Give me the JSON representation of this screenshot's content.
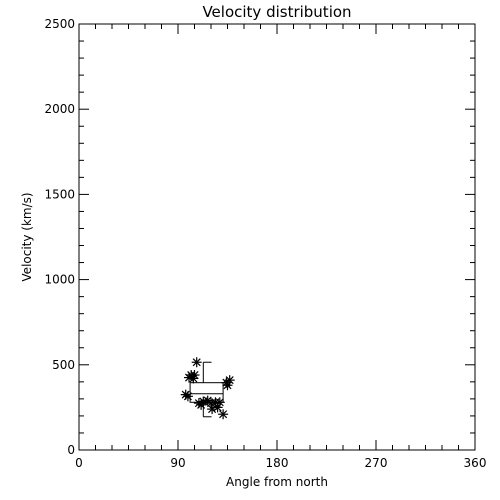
{
  "chart_data": {
    "type": "scatter",
    "title": "Velocity distribution",
    "xlabel": "Angle from north",
    "ylabel": "Velocity (km/s)",
    "xlim": [
      0,
      360
    ],
    "ylim": [
      0,
      2500
    ],
    "xticks": [
      0,
      90,
      180,
      270,
      360
    ],
    "xtick_labels": [
      "0",
      "90",
      "180",
      "270",
      "360"
    ],
    "yticks": [
      0,
      500,
      1000,
      1500,
      2000,
      2500
    ],
    "ytick_labels": [
      "0",
      "500",
      "1000",
      "1500",
      "2000",
      "2500"
    ],
    "grid": false,
    "marker": "asterisk",
    "points": [
      {
        "x": 107,
        "y": 515
      },
      {
        "x": 102,
        "y": 440
      },
      {
        "x": 105,
        "y": 440
      },
      {
        "x": 100,
        "y": 425
      },
      {
        "x": 104,
        "y": 420
      },
      {
        "x": 137,
        "y": 410
      },
      {
        "x": 134,
        "y": 395
      },
      {
        "x": 135,
        "y": 380
      },
      {
        "x": 97,
        "y": 325
      },
      {
        "x": 99,
        "y": 315
      },
      {
        "x": 117,
        "y": 290
      },
      {
        "x": 113,
        "y": 285
      },
      {
        "x": 109,
        "y": 275
      },
      {
        "x": 124,
        "y": 280
      },
      {
        "x": 120,
        "y": 275
      },
      {
        "x": 128,
        "y": 280
      },
      {
        "x": 111,
        "y": 265
      },
      {
        "x": 126,
        "y": 250
      },
      {
        "x": 121,
        "y": 240
      },
      {
        "x": 131,
        "y": 210
      }
    ],
    "boxplot": {
      "x_center": 113,
      "x_left": 101,
      "x_right": 131,
      "whisker_low": 195,
      "q1": 280,
      "median": 330,
      "q3": 395,
      "whisker_high": 515
    }
  }
}
